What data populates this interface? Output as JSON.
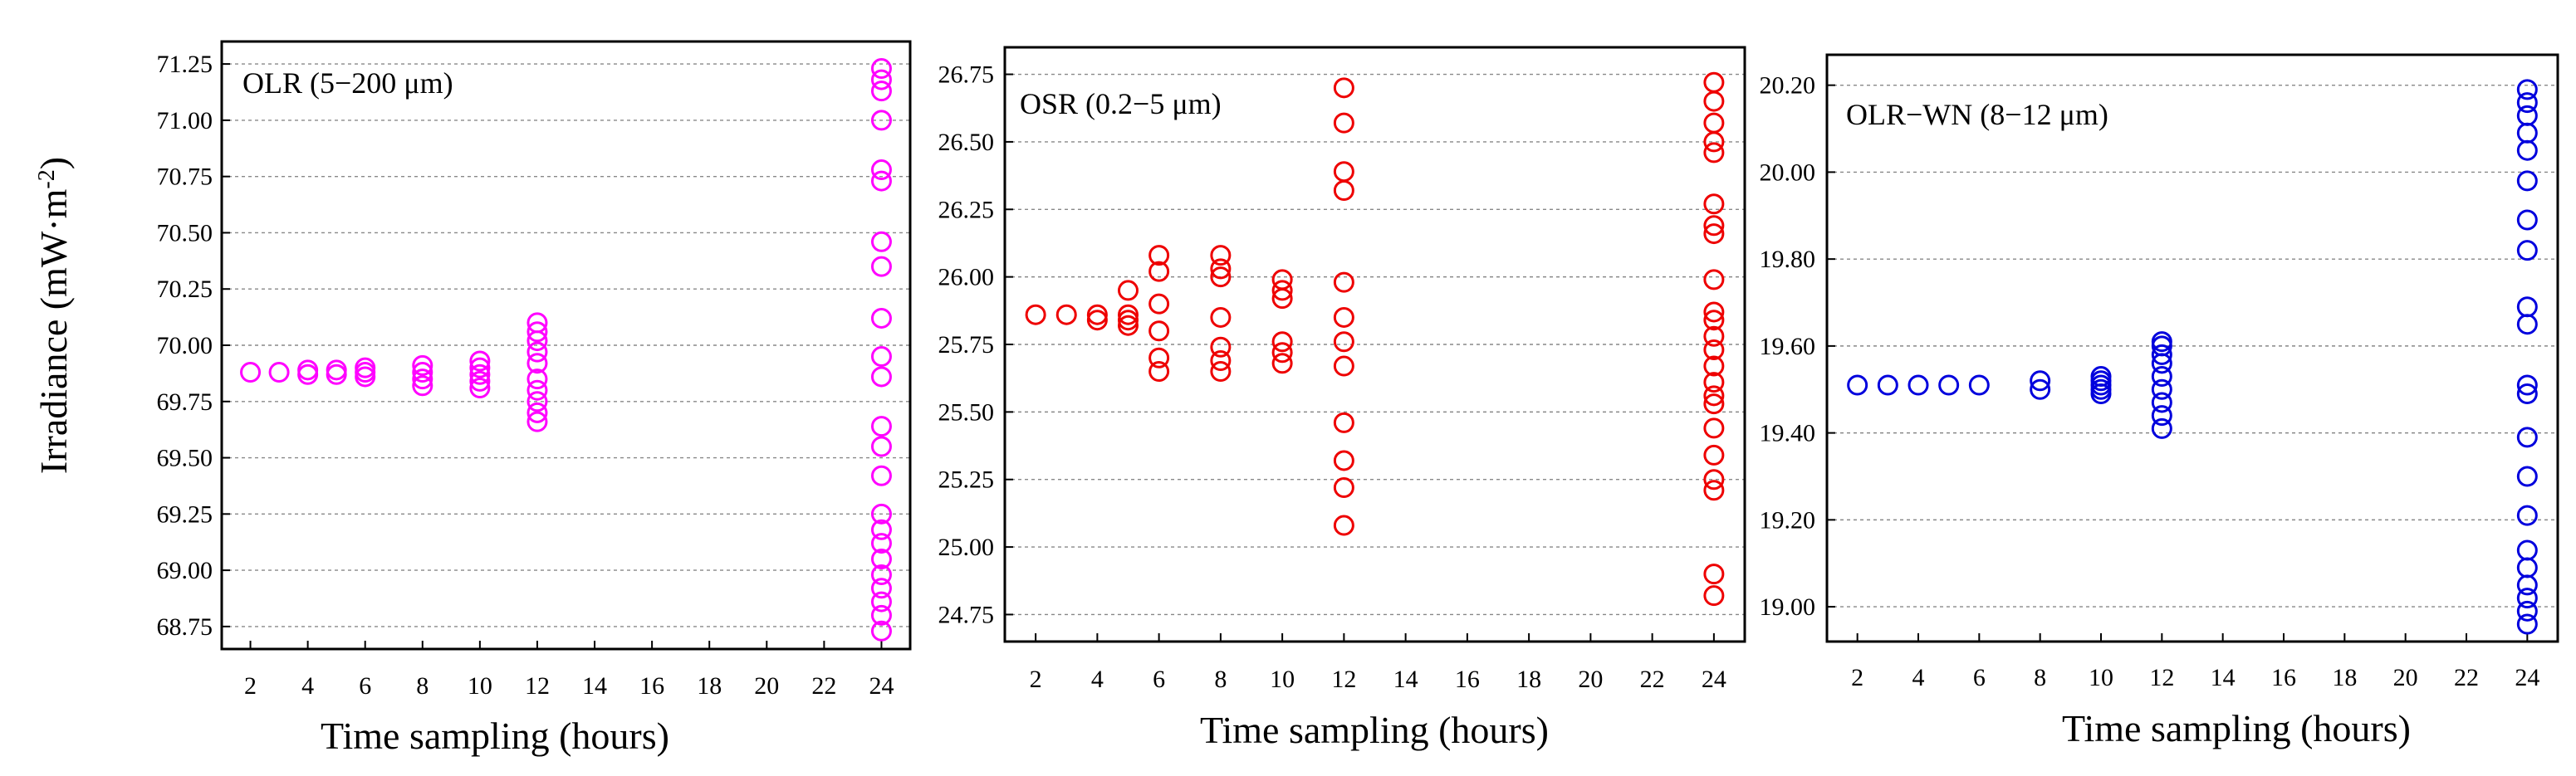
{
  "chart_data": [
    {
      "type": "scatter",
      "label": "OLR (5−200 μm)",
      "color": "#ff00ff",
      "ylabel": "Irradiance (mW·m",
      "ylabel_sup": "-2",
      "ylabel_end": ")",
      "xlabel": "Time sampling (hours)",
      "xticks": [
        "2",
        "4",
        "6",
        "8",
        "10",
        "12",
        "14",
        "16",
        "18",
        "20",
        "22",
        "24"
      ],
      "xlim": [
        1,
        25
      ],
      "ylim": [
        68.65,
        71.35
      ],
      "yticks": [
        "68.75",
        "69.00",
        "69.25",
        "69.50",
        "69.75",
        "70.00",
        "70.25",
        "70.50",
        "70.75",
        "71.00",
        "71.25"
      ],
      "grid": true,
      "series": [
        {
          "x": 2,
          "y": [
            69.88
          ]
        },
        {
          "x": 3,
          "y": [
            69.88
          ]
        },
        {
          "x": 4,
          "y": [
            69.87,
            69.89
          ]
        },
        {
          "x": 5,
          "y": [
            69.87,
            69.89
          ]
        },
        {
          "x": 6,
          "y": [
            69.86,
            69.88,
            69.9
          ]
        },
        {
          "x": 8,
          "y": [
            69.82,
            69.85,
            69.88,
            69.91
          ]
        },
        {
          "x": 10,
          "y": [
            69.81,
            69.84,
            69.87,
            69.9,
            69.93
          ]
        },
        {
          "x": 12,
          "y": [
            69.66,
            69.7,
            69.75,
            69.8,
            69.85,
            69.92,
            69.97,
            70.02,
            70.06,
            70.1
          ]
        },
        {
          "x": 24,
          "y": [
            68.73,
            68.8,
            68.86,
            68.92,
            68.98,
            69.05,
            69.12,
            69.18,
            69.25,
            69.42,
            69.55,
            69.64,
            69.86,
            69.95,
            70.12,
            70.35,
            70.46,
            70.73,
            70.78,
            71.0,
            71.13,
            71.18,
            71.23
          ]
        }
      ]
    },
    {
      "type": "scatter",
      "label": "OSR (0.2−5 μm)",
      "color": "#ee0000",
      "xlabel": "Time sampling (hours)",
      "xticks": [
        "2",
        "4",
        "6",
        "8",
        "10",
        "12",
        "14",
        "16",
        "18",
        "20",
        "22",
        "24"
      ],
      "xlim": [
        1,
        25
      ],
      "ylim": [
        24.65,
        26.85
      ],
      "yticks": [
        "24.75",
        "25.00",
        "25.25",
        "25.50",
        "25.75",
        "26.00",
        "26.25",
        "26.50",
        "26.75"
      ],
      "grid": true,
      "series": [
        {
          "x": 2,
          "y": [
            25.86
          ]
        },
        {
          "x": 3,
          "y": [
            25.86
          ]
        },
        {
          "x": 4,
          "y": [
            25.84,
            25.86
          ]
        },
        {
          "x": 5,
          "y": [
            25.82,
            25.84,
            25.86,
            25.95
          ]
        },
        {
          "x": 6,
          "y": [
            25.65,
            25.7,
            25.8,
            25.9,
            26.02,
            26.08
          ]
        },
        {
          "x": 8,
          "y": [
            25.65,
            25.69,
            25.74,
            25.85,
            26.0,
            26.03,
            26.08
          ]
        },
        {
          "x": 10,
          "y": [
            25.68,
            25.72,
            25.76,
            25.92,
            25.95,
            25.99
          ]
        },
        {
          "x": 12,
          "y": [
            25.08,
            25.22,
            25.32,
            25.46,
            25.67,
            25.76,
            25.85,
            25.98,
            26.32,
            26.39,
            26.57,
            26.7
          ]
        },
        {
          "x": 24,
          "y": [
            24.82,
            24.9,
            25.21,
            25.25,
            25.34,
            25.44,
            25.53,
            25.56,
            25.61,
            25.67,
            25.73,
            25.78,
            25.84,
            25.87,
            25.99,
            26.16,
            26.19,
            26.27,
            26.46,
            26.5,
            26.57,
            26.65,
            26.72
          ]
        }
      ]
    },
    {
      "type": "scatter",
      "label": "OLR−WN (8−12 μm)",
      "color": "#0000dd",
      "xlabel": "Time sampling (hours)",
      "xticks": [
        "2",
        "4",
        "6",
        "8",
        "10",
        "12",
        "14",
        "16",
        "18",
        "20",
        "22",
        "24"
      ],
      "xlim": [
        1,
        25
      ],
      "ylim": [
        18.92,
        20.27
      ],
      "yticks": [
        "19.00",
        "19.20",
        "19.40",
        "19.60",
        "19.80",
        "20.00",
        "20.20"
      ],
      "grid": true,
      "series": [
        {
          "x": 2,
          "y": [
            19.51
          ]
        },
        {
          "x": 3,
          "y": [
            19.51
          ]
        },
        {
          "x": 4,
          "y": [
            19.51
          ]
        },
        {
          "x": 5,
          "y": [
            19.51
          ]
        },
        {
          "x": 6,
          "y": [
            19.51
          ]
        },
        {
          "x": 8,
          "y": [
            19.5,
            19.52
          ]
        },
        {
          "x": 10,
          "y": [
            19.49,
            19.5,
            19.51,
            19.52,
            19.53
          ]
        },
        {
          "x": 12,
          "y": [
            19.41,
            19.44,
            19.47,
            19.5,
            19.53,
            19.56,
            19.58,
            19.6,
            19.61
          ]
        },
        {
          "x": 24,
          "y": [
            18.96,
            18.99,
            19.02,
            19.05,
            19.09,
            19.13,
            19.21,
            19.3,
            19.39,
            19.49,
            19.51,
            19.65,
            19.69,
            19.82,
            19.89,
            19.98,
            20.05,
            20.09,
            20.13,
            20.16,
            20.19
          ]
        }
      ]
    }
  ]
}
